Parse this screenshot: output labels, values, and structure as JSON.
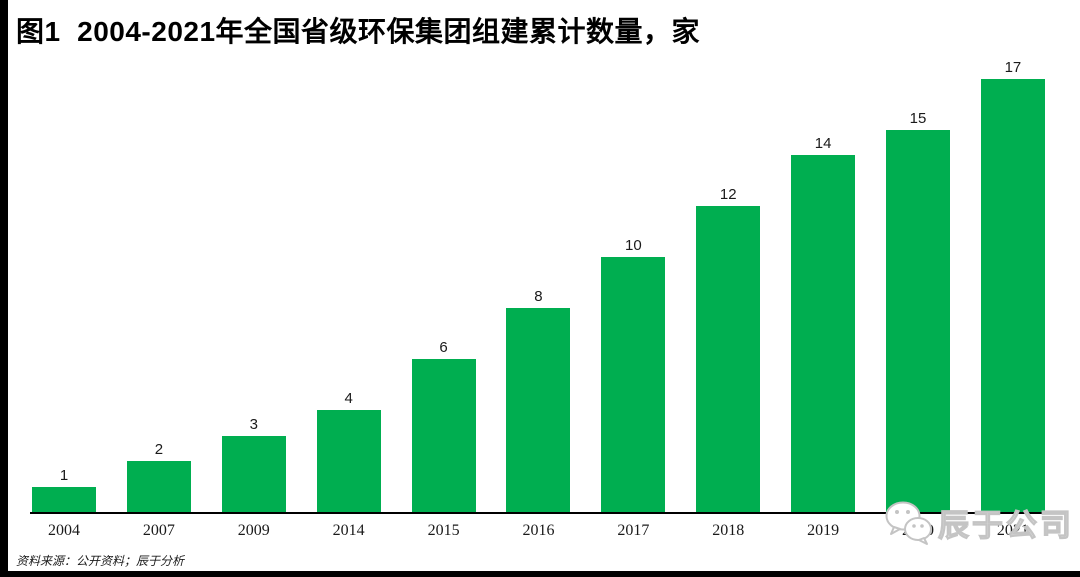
{
  "page": {
    "title": "图1  2004-2021年全国省级环保集团组建累计数量，家",
    "source_note": "资料来源：公开资料；辰于分析",
    "watermark_text": "辰于公司"
  },
  "colors": {
    "bar_green": "#00AE50",
    "axis_black": "#000000",
    "watermark_gray": "#c4c4c4"
  },
  "chart_data": {
    "type": "bar",
    "figure_label": "图1",
    "title": "2004-2021年全国省级环保集团组建累计数量，家",
    "unit": "家",
    "categories": [
      "2004",
      "2007",
      "2009",
      "2014",
      "2015",
      "2016",
      "2017",
      "2018",
      "2019",
      "2020",
      "2021"
    ],
    "values": [
      1,
      2,
      3,
      4,
      6,
      8,
      10,
      12,
      14,
      15,
      17
    ],
    "xlabel": "",
    "ylabel": "",
    "ylim": [
      0,
      18
    ],
    "grid": false,
    "legend": false,
    "data_labels": true
  }
}
